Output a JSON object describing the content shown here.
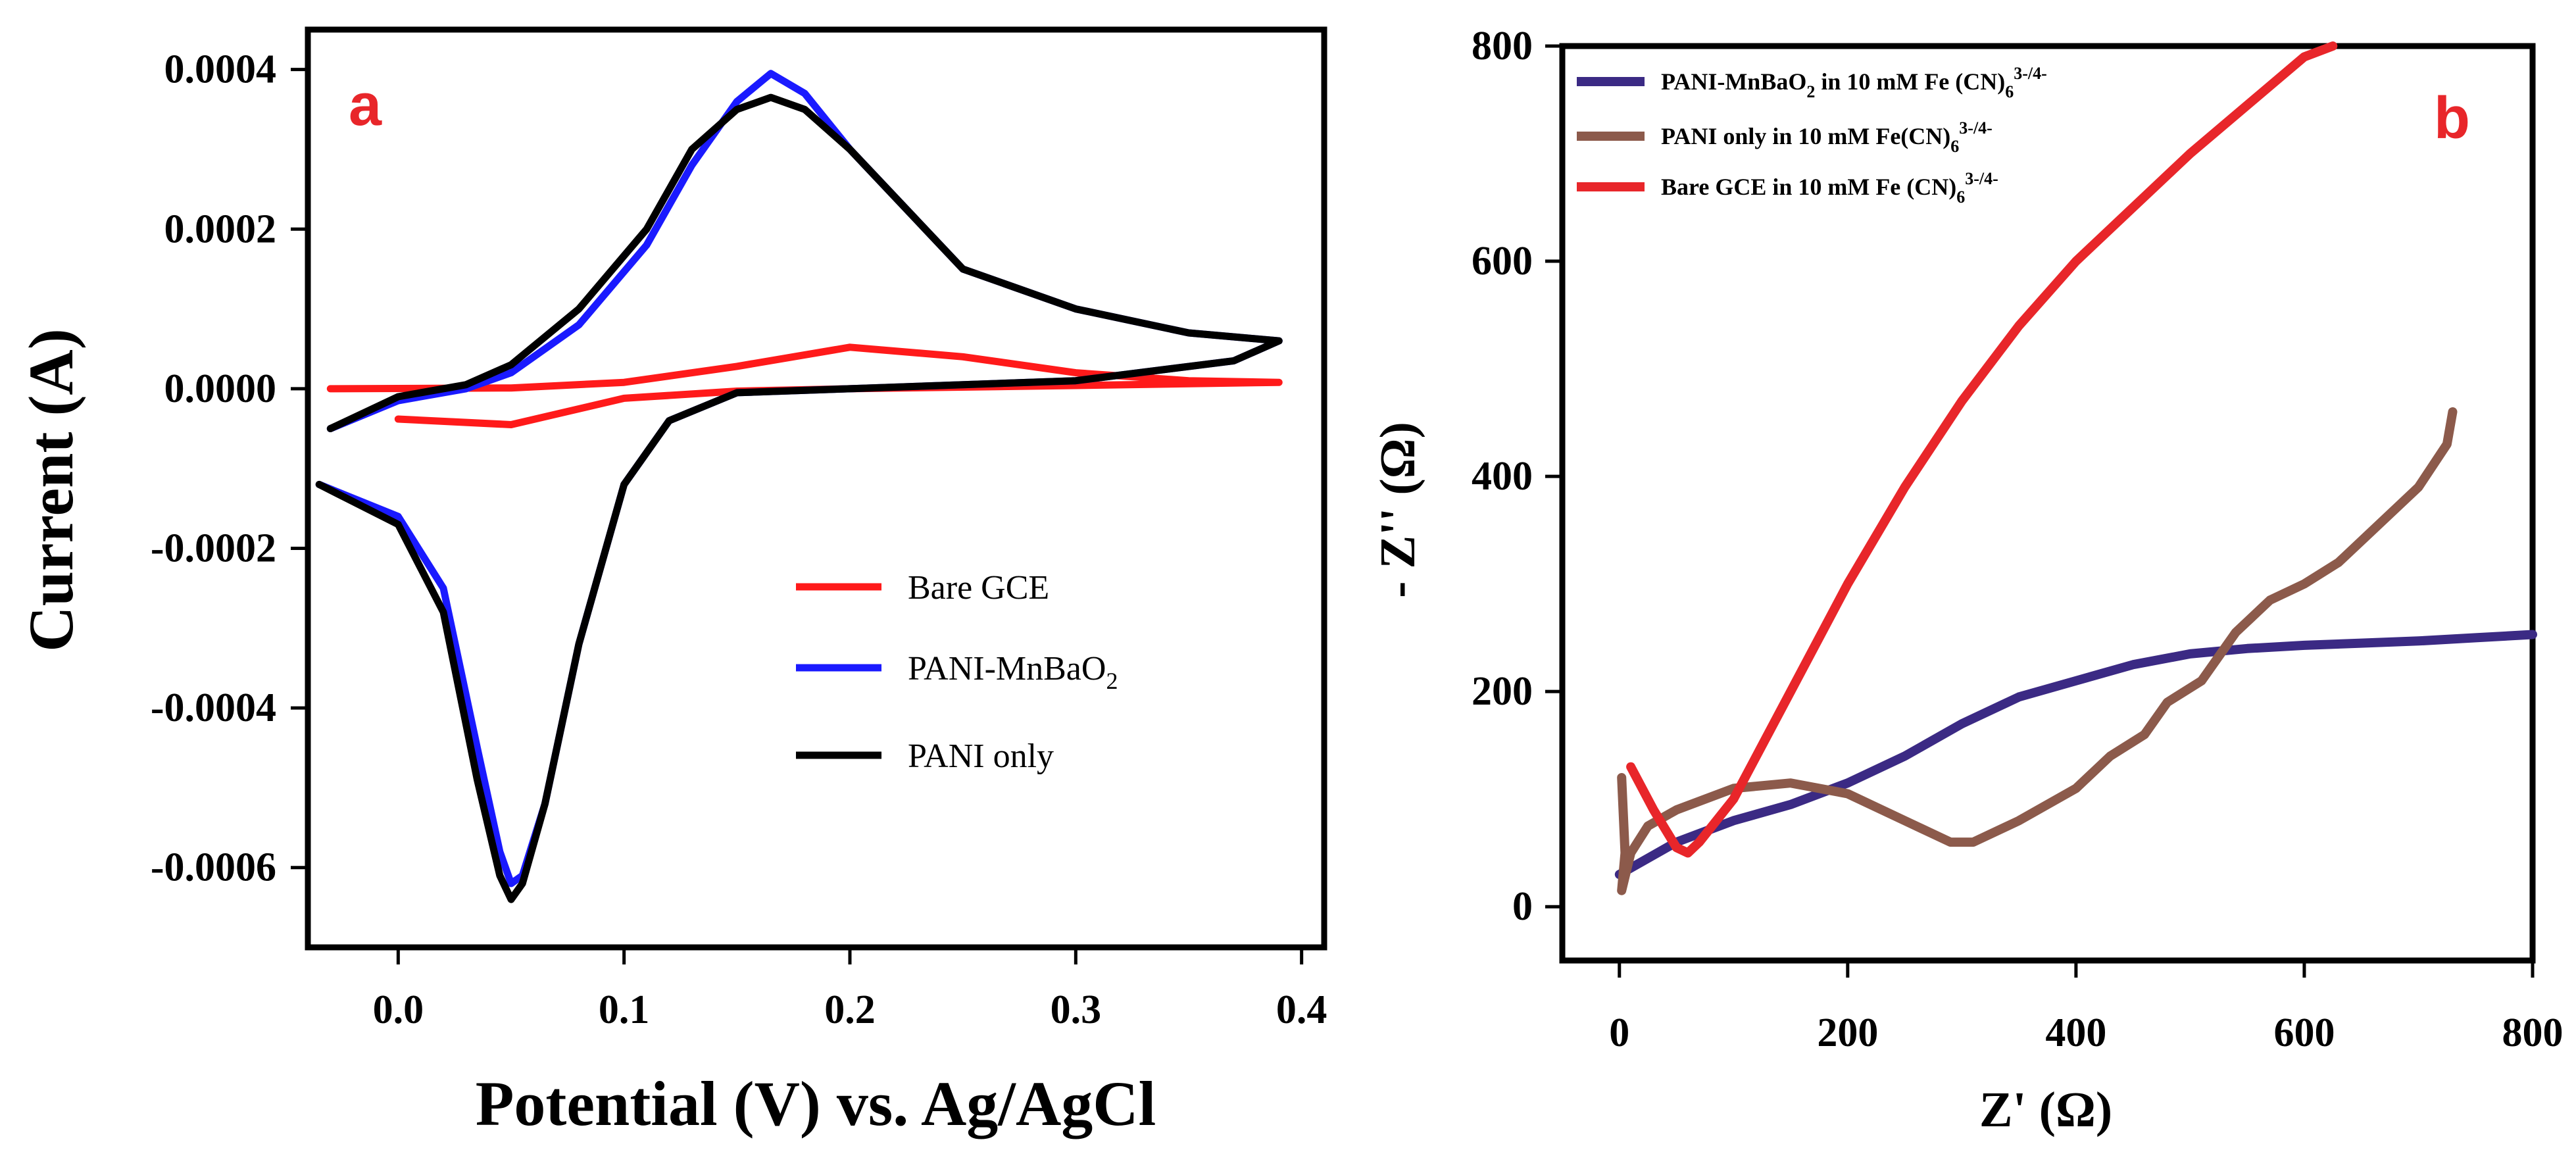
{
  "chart_data": [
    {
      "panel": "a",
      "type": "line",
      "panel_label": "a",
      "panel_label_color": "#e8262a",
      "title": "",
      "xlabel": "Potential (V) vs. Ag/AgCl",
      "ylabel": "Current (A)",
      "xlim": [
        -0.04,
        0.41
      ],
      "ylim": [
        -0.0007,
        0.00045
      ],
      "xticks": [
        "0.0",
        "0.1",
        "0.2",
        "0.3",
        "0.4"
      ],
      "xtick_values": [
        0.0,
        0.1,
        0.2,
        0.3,
        0.4
      ],
      "yticks": [
        "0.0004",
        "0.0002",
        "0.0000",
        "-0.0002",
        "-0.0004",
        "-0.0006"
      ],
      "ytick_values": [
        0.0004,
        0.0002,
        0.0,
        -0.0002,
        -0.0004,
        -0.0006
      ],
      "grid": false,
      "legend_position": "center-right",
      "series": [
        {
          "name": "Bare GCE",
          "color": "#ff1a1a",
          "x": [
            -0.03,
            0.05,
            0.1,
            0.15,
            0.2,
            0.25,
            0.3,
            0.35,
            0.39,
            0.3,
            0.2,
            0.15,
            0.1,
            0.05,
            0.0
          ],
          "y": [
            0.0,
            1e-06,
            8e-06,
            2.8e-05,
            5.2e-05,
            4e-05,
            2e-05,
            1e-05,
            8e-06,
            4e-06,
            0.0,
            -3e-06,
            -1.2e-05,
            -4.5e-05,
            -3.8e-05
          ]
        },
        {
          "name": "PANI-MnBaO",
          "legend_subscript": "2",
          "color": "#1a1aff",
          "x": [
            -0.03,
            0.0,
            0.03,
            0.05,
            0.08,
            0.11,
            0.13,
            0.15,
            0.165,
            0.18,
            0.2,
            0.25,
            0.3,
            0.35,
            0.39,
            0.37,
            0.3,
            0.2,
            0.15,
            0.12,
            0.1,
            0.08,
            0.065,
            0.055,
            0.05,
            0.045,
            0.035,
            0.02,
            0.0,
            -0.035
          ],
          "y": [
            -5e-05,
            -1.5e-05,
            0.0,
            2e-05,
            8e-05,
            0.00018,
            0.00028,
            0.00036,
            0.000395,
            0.00037,
            0.0003,
            0.00015,
            0.0001,
            7e-05,
            6e-05,
            3.5e-05,
            1e-05,
            0.0,
            -5e-06,
            -4e-05,
            -0.00012,
            -0.00032,
            -0.00052,
            -0.00061,
            -0.00062,
            -0.00058,
            -0.00045,
            -0.00025,
            -0.00016,
            -0.00012
          ]
        },
        {
          "name": "PANI only",
          "color": "#000000",
          "x": [
            -0.03,
            0.0,
            0.03,
            0.05,
            0.08,
            0.11,
            0.13,
            0.15,
            0.165,
            0.18,
            0.2,
            0.25,
            0.3,
            0.35,
            0.39,
            0.37,
            0.3,
            0.2,
            0.15,
            0.12,
            0.1,
            0.08,
            0.065,
            0.055,
            0.05,
            0.045,
            0.035,
            0.02,
            0.0,
            -0.035
          ],
          "y": [
            -5e-05,
            -1e-05,
            5e-06,
            3e-05,
            0.0001,
            0.0002,
            0.0003,
            0.00035,
            0.000365,
            0.00035,
            0.0003,
            0.00015,
            0.0001,
            7e-05,
            6e-05,
            3.5e-05,
            1e-05,
            0.0,
            -5e-06,
            -4e-05,
            -0.00012,
            -0.00032,
            -0.00052,
            -0.00062,
            -0.00064,
            -0.00061,
            -0.00049,
            -0.00028,
            -0.00017,
            -0.00012
          ]
        }
      ]
    },
    {
      "panel": "b",
      "type": "line",
      "panel_label": "b",
      "panel_label_color": "#e8262a",
      "title": "",
      "xlabel": "Z' (Ω)",
      "ylabel": "- Z'' (Ω)",
      "xlim": [
        -50,
        800
      ],
      "ylim": [
        -50,
        800
      ],
      "xticks": [
        "0",
        "200",
        "400",
        "600",
        "800"
      ],
      "xtick_values": [
        0,
        200,
        400,
        600,
        800
      ],
      "yticks": [
        "800",
        "600",
        "400",
        "200",
        "0"
      ],
      "ytick_values": [
        800,
        600,
        400,
        200,
        0
      ],
      "grid": false,
      "legend_position": "top-left",
      "series": [
        {
          "name": "PANI-MnBaO",
          "legend_parts": [
            "PANI-MnBaO",
            "2",
            " in 10 mM Fe (CN)",
            "6",
            "3-/4-"
          ],
          "color": "#3b2a84",
          "x": [
            0,
            50,
            100,
            150,
            200,
            250,
            300,
            350,
            400,
            450,
            500,
            550,
            600,
            650,
            700,
            750,
            800
          ],
          "y": [
            30,
            60,
            80,
            95,
            115,
            140,
            170,
            195,
            210,
            225,
            235,
            240,
            243,
            245,
            247,
            250,
            253
          ]
        },
        {
          "name": "PANI only",
          "legend_parts": [
            "PANI only in 10 mM Fe(CN)",
            "6",
            "3-/4-"
          ],
          "color": "#8c5a4b",
          "x": [
            2,
            5,
            2,
            10,
            25,
            50,
            100,
            150,
            200,
            250,
            290,
            310,
            350,
            400,
            430,
            460,
            480,
            510,
            540,
            570,
            600,
            630,
            660,
            700,
            725,
            730
          ],
          "y": [
            120,
            50,
            15,
            50,
            75,
            90,
            110,
            115,
            105,
            80,
            60,
            60,
            80,
            110,
            140,
            160,
            190,
            210,
            255,
            285,
            300,
            320,
            350,
            390,
            430,
            460
          ]
        },
        {
          "name": "Bare GCE",
          "legend_parts": [
            "Bare GCE in 10 mM Fe (CN)",
            "6",
            "3-/4-"
          ],
          "color": "#e8262a",
          "x": [
            10,
            30,
            50,
            60,
            70,
            100,
            150,
            200,
            250,
            300,
            350,
            400,
            450,
            500,
            550,
            600,
            625
          ],
          "y": [
            130,
            90,
            55,
            50,
            60,
            100,
            200,
            300,
            390,
            470,
            540,
            600,
            650,
            700,
            745,
            790,
            800
          ]
        }
      ]
    }
  ]
}
